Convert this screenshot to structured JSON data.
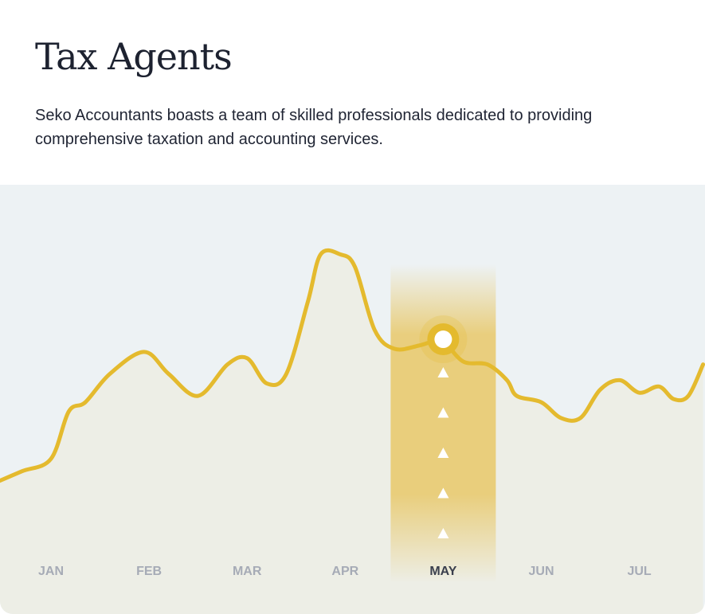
{
  "heading": {
    "title": "Tax Agents",
    "description": "Seko Accountants boasts a team of skilled professionals dedicated to providing comprehensive taxation and accounting services."
  },
  "colors": {
    "line": "#e4ba2e",
    "highlight": "#e8c869",
    "panel_bg": "#edf2f4",
    "tick": "#a6abb6",
    "tick_active": "#3a3f4d"
  },
  "chart_data": {
    "type": "line",
    "title": "",
    "xlabel": "",
    "ylabel": "",
    "categories": [
      "JAN",
      "FEB",
      "MAR",
      "APR",
      "MAY",
      "JUN",
      "JUL"
    ],
    "highlighted_category": "MAY",
    "grid": false,
    "legend": "none",
    "ylim": [
      0,
      100
    ],
    "series": [
      {
        "x": [
          -0.6,
          -0.3,
          0.0,
          0.18,
          0.35,
          0.6,
          0.95,
          1.2,
          1.5,
          1.8,
          2.0,
          2.2,
          2.4,
          2.62,
          2.75,
          2.95,
          3.1,
          3.3,
          3.5,
          3.75,
          3.95,
          4.0,
          4.2,
          4.45,
          4.65,
          4.75,
          5.0,
          5.2,
          5.4,
          5.6,
          5.8,
          6.0,
          6.2,
          6.35,
          6.5,
          6.65
        ],
        "values": [
          15,
          19,
          23,
          38,
          41,
          50,
          57,
          50,
          43,
          53,
          55,
          47,
          50,
          73,
          88,
          88,
          84,
          64,
          58,
          59,
          61,
          61,
          54,
          53,
          48,
          43,
          41,
          36,
          36,
          45,
          48,
          44,
          46,
          42,
          43,
          53
        ]
      }
    ]
  }
}
